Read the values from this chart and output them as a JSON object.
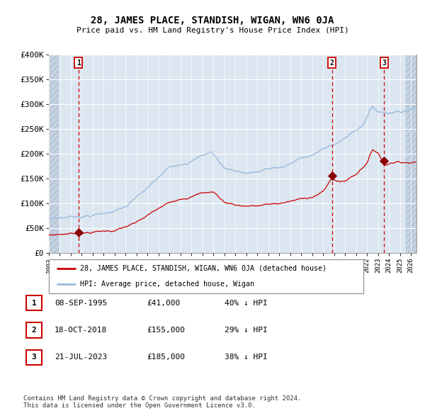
{
  "title": "28, JAMES PLACE, STANDISH, WIGAN, WN6 0JA",
  "subtitle": "Price paid vs. HM Land Registry's House Price Index (HPI)",
  "footer_line1": "Contains HM Land Registry data © Crown copyright and database right 2024.",
  "footer_line2": "This data is licensed under the Open Government Licence v3.0.",
  "legend_label_red": "28, JAMES PLACE, STANDISH, WIGAN, WN6 0JA (detached house)",
  "legend_label_blue": "HPI: Average price, detached house, Wigan",
  "sale_color": "#cc0000",
  "hpi_color": "#99bbdd",
  "background_plot": "#dce6f0",
  "hatch_color": "#c4d2e2",
  "hatch_pattern": "////",
  "grid_color": "#ffffff",
  "dashed_line_color": "#cc0000",
  "sale_marker_color": "#880000",
  "ylim": [
    0,
    400000
  ],
  "yticks": [
    0,
    50000,
    100000,
    150000,
    200000,
    250000,
    300000,
    350000,
    400000
  ],
  "ytick_labels": [
    "£0",
    "£50K",
    "£100K",
    "£150K",
    "£200K",
    "£250K",
    "£300K",
    "£350K",
    "£400K"
  ],
  "xlim_start": 1993.0,
  "xlim_end": 2026.5,
  "hatch_left_end": 1993.92,
  "hatch_right_start": 2025.5,
  "sales": [
    {
      "label": "1",
      "date": 1995.69,
      "price": 41000,
      "date_str": "08-SEP-1995",
      "price_str": "£41,000",
      "hpi_pct": "40% ↓ HPI"
    },
    {
      "label": "2",
      "date": 2018.8,
      "price": 155000,
      "date_str": "18-OCT-2018",
      "price_str": "£155,000",
      "hpi_pct": "29% ↓ HPI"
    },
    {
      "label": "3",
      "date": 2023.55,
      "price": 185000,
      "date_str": "21-JUL-2023",
      "price_str": "£185,000",
      "hpi_pct": "38% ↓ HPI"
    }
  ]
}
